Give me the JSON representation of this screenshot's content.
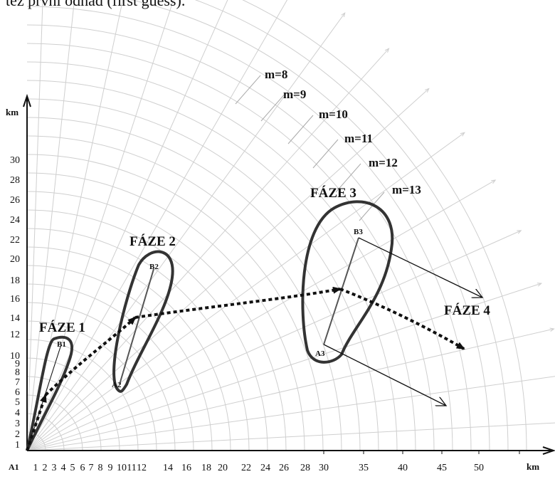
{
  "caption": "též první odhad (first guess).",
  "axes": {
    "x_unit": "km",
    "y_unit": "km",
    "origin_label": "A1",
    "x_ticks": [
      "1",
      "2",
      "3",
      "4",
      "5",
      "6",
      "7",
      "8",
      "9",
      "10",
      "11",
      "12",
      "14",
      "16",
      "18",
      "20",
      "22",
      "24",
      "26",
      "28",
      "30",
      "35",
      "40",
      "45",
      "50"
    ],
    "y_ticks": [
      "1",
      "2",
      "3",
      "4",
      "5",
      "6",
      "7",
      "8",
      "9",
      "10",
      "12",
      "14",
      "16",
      "18",
      "20",
      "22",
      "24",
      "26",
      "28",
      "30"
    ]
  },
  "m_labels": [
    "m=8",
    "m=9",
    "m=10",
    "m=11",
    "m=12",
    "m=13"
  ],
  "phases": [
    {
      "label": "FÁZE 1",
      "start": "A1",
      "end": "B1"
    },
    {
      "label": "FÁZE 2",
      "start": "A2",
      "end": "B2"
    },
    {
      "label": "FÁZE 3",
      "start": "A3",
      "end": "B3"
    },
    {
      "label": "FÁZE 4"
    }
  ],
  "colors": {
    "ink": "#111111",
    "grid": "#cfcfcf",
    "outline": "#333333"
  }
}
